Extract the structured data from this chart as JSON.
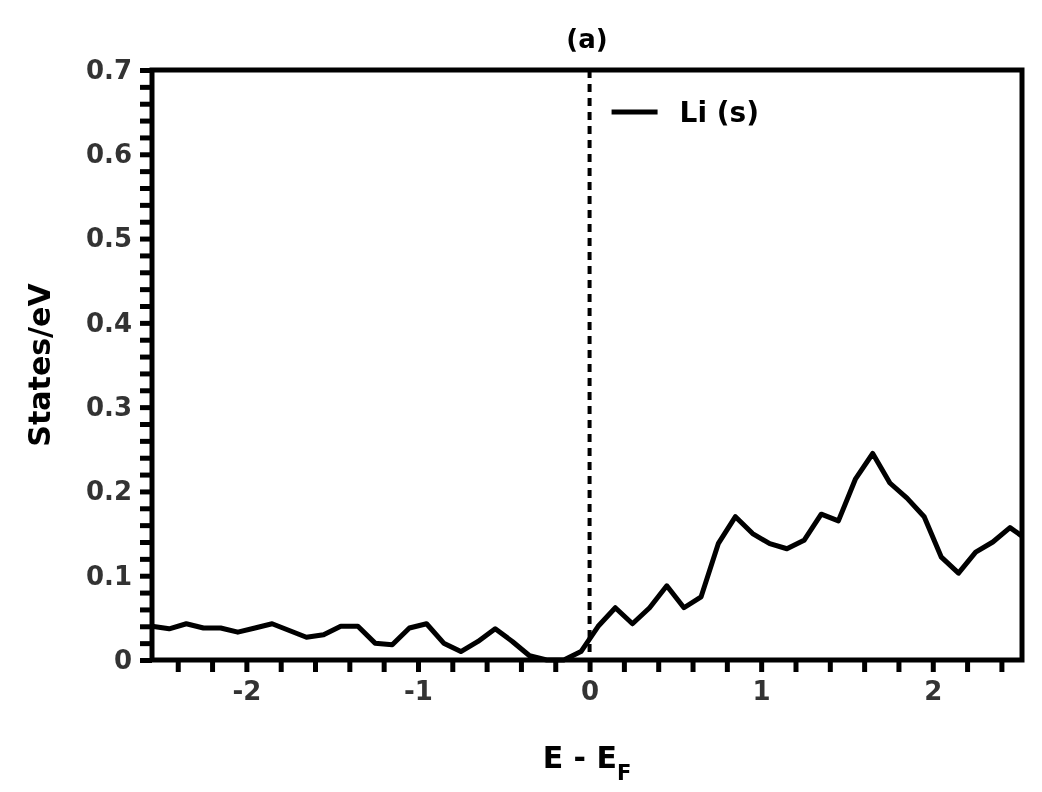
{
  "chart_data": {
    "type": "line",
    "title": "(a)",
    "xlabel": "E - E$_{F}$",
    "ylabel": "States/eV",
    "x": [
      -2.55,
      -2.45,
      -2.35,
      -2.25,
      -2.15,
      -2.05,
      -1.95,
      -1.85,
      -1.75,
      -1.65,
      -1.55,
      -1.45,
      -1.35,
      -1.25,
      -1.15,
      -1.05,
      -0.95,
      -0.85,
      -0.75,
      -0.65,
      -0.55,
      -0.45,
      -0.35,
      -0.25,
      -0.15,
      -0.05,
      0.05,
      0.15,
      0.25,
      0.35,
      0.45,
      0.55,
      0.65,
      0.75,
      0.85,
      0.95,
      1.05,
      1.15,
      1.25,
      1.35,
      1.45,
      1.55,
      1.65,
      1.75,
      1.85,
      1.95,
      2.05,
      2.15,
      2.25,
      2.35,
      2.45,
      2.52
    ],
    "series": [
      {
        "name": "Li (s)",
        "color": "#000000",
        "values": [
          0.04,
          0.037,
          0.043,
          0.038,
          0.038,
          0.033,
          0.038,
          0.043,
          0.035,
          0.027,
          0.03,
          0.04,
          0.04,
          0.02,
          0.018,
          0.038,
          0.043,
          0.02,
          0.01,
          0.022,
          0.037,
          0.022,
          0.005,
          0.0,
          0.0,
          0.01,
          0.04,
          0.062,
          0.043,
          0.062,
          0.088,
          0.062,
          0.075,
          0.138,
          0.17,
          0.15,
          0.138,
          0.132,
          0.142,
          0.173,
          0.165,
          0.215,
          0.245,
          0.21,
          0.192,
          0.17,
          0.122,
          0.103,
          0.128,
          0.14,
          0.157,
          0.147
        ]
      }
    ],
    "xlim": [
      -2.55,
      2.52
    ],
    "ylim": [
      0,
      0.7
    ],
    "xticks": [
      {
        "value": -2.4,
        "label": null
      },
      {
        "value": -2.2,
        "label": null
      },
      -2,
      {
        "value": -1.8,
        "label": null
      },
      {
        "value": -1.6,
        "label": null
      },
      {
        "value": -1.4,
        "label": null
      },
      {
        "value": -1.2,
        "label": null
      },
      -1,
      {
        "value": -0.8,
        "label": null
      },
      {
        "value": -0.6,
        "label": null
      },
      {
        "value": -0.4,
        "label": null
      },
      {
        "value": -0.2,
        "label": null
      },
      0,
      {
        "value": 0.2,
        "label": null
      },
      {
        "value": 0.4,
        "label": null
      },
      {
        "value": 0.6,
        "label": null
      },
      {
        "value": 0.8,
        "label": null
      },
      1,
      {
        "value": 1.2,
        "label": null
      },
      {
        "value": 1.4,
        "label": null
      },
      {
        "value": 1.6,
        "label": null
      },
      {
        "value": 1.8,
        "label": null
      },
      2,
      {
        "value": 2.2,
        "label": null
      },
      {
        "value": 2.4,
        "label": null
      }
    ],
    "yticks": [
      0,
      {
        "value": 0.02,
        "label": null
      },
      {
        "value": 0.04,
        "label": null
      },
      {
        "value": 0.06,
        "label": null
      },
      {
        "value": 0.08,
        "label": null
      },
      0.1,
      {
        "value": 0.12,
        "label": null
      },
      {
        "value": 0.14,
        "label": null
      },
      {
        "value": 0.16,
        "label": null
      },
      {
        "value": 0.18,
        "label": null
      },
      0.2,
      {
        "value": 0.22,
        "label": null
      },
      {
        "value": 0.24,
        "label": null
      },
      {
        "value": 0.26,
        "label": null
      },
      {
        "value": 0.28,
        "label": null
      },
      0.3,
      {
        "value": 0.32,
        "label": null
      },
      {
        "value": 0.34,
        "label": null
      },
      {
        "value": 0.36,
        "label": null
      },
      {
        "value": 0.38,
        "label": null
      },
      0.4,
      {
        "value": 0.42,
        "label": null
      },
      {
        "value": 0.44,
        "label": null
      },
      {
        "value": 0.46,
        "label": null
      },
      {
        "value": 0.48,
        "label": null
      },
      0.5,
      {
        "value": 0.52,
        "label": null
      },
      {
        "value": 0.54,
        "label": null
      },
      {
        "value": 0.56,
        "label": null
      },
      {
        "value": 0.58,
        "label": null
      },
      0.6,
      {
        "value": 0.62,
        "label": null
      },
      {
        "value": 0.64,
        "label": null
      },
      {
        "value": 0.66,
        "label": null
      },
      {
        "value": 0.68,
        "label": null
      },
      0.7
    ],
    "ref_lines": [
      {
        "axis": "x",
        "value": 0,
        "line_style": "dashed",
        "color": "#000000"
      }
    ],
    "legend": "top",
    "grid": false,
    "marker": "none",
    "line_style": "solid"
  }
}
